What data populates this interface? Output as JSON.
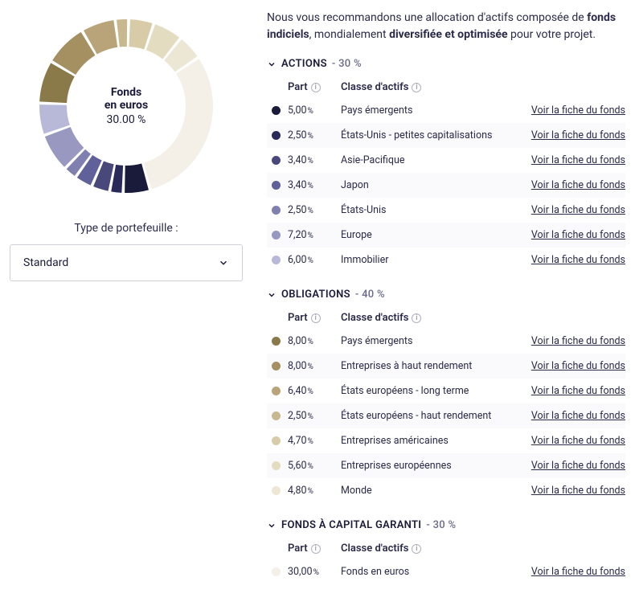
{
  "intro": {
    "p1": "Nous vous recommandons une allocation d'actifs composée de",
    "b1": "fonds indiciels",
    "p2": ", mondialement",
    "b2": "diversifiée et optimisée",
    "p3": "pour votre projet."
  },
  "donut": {
    "center": {
      "line1": "Fonds",
      "line2": "en euros",
      "line3": "30.00 %"
    },
    "type": "donut",
    "colors": {
      "segment_gap_deg": 2,
      "background": "#ffffff"
    },
    "segments": [
      {
        "value": 5.0,
        "color": "#1a1a3a"
      },
      {
        "value": 2.5,
        "color": "#2a2a5a"
      },
      {
        "value": 3.4,
        "color": "#48487a"
      },
      {
        "value": 3.4,
        "color": "#60609a"
      },
      {
        "value": 2.5,
        "color": "#8080b0"
      },
      {
        "value": 7.2,
        "color": "#9898c0"
      },
      {
        "value": 6.0,
        "color": "#b8b8d8"
      },
      {
        "value": 8.0,
        "color": "#8a7a4a"
      },
      {
        "value": 8.0,
        "color": "#a49060"
      },
      {
        "value": 6.4,
        "color": "#b8a478"
      },
      {
        "value": 2.5,
        "color": "#c8b890"
      },
      {
        "value": 4.7,
        "color": "#d8cca8"
      },
      {
        "value": 5.6,
        "color": "#e4dcc0"
      },
      {
        "value": 4.8,
        "color": "#ece6d4"
      },
      {
        "value": 30.0,
        "color": "#f4f0e8"
      }
    ]
  },
  "portfolio_type": {
    "label": "Type de portefeuille :",
    "value": "Standard"
  },
  "table": {
    "header_part": "Part",
    "header_class": "Classe d'actifs",
    "link_label": "Voir la fiche du fonds"
  },
  "sections": [
    {
      "name": "ACTIONS",
      "pct": "30 %",
      "rows": [
        {
          "part": "5,00",
          "class": "Pays émergents",
          "color": "#1a1a3a"
        },
        {
          "part": "2,50",
          "class": "États-Unis - petites capitalisations",
          "color": "#2a2a5a"
        },
        {
          "part": "3,40",
          "class": "Asie-Pacifique",
          "color": "#48487a"
        },
        {
          "part": "3,40",
          "class": "Japon",
          "color": "#60609a"
        },
        {
          "part": "2,50",
          "class": "États-Unis",
          "color": "#8080b0"
        },
        {
          "part": "7,20",
          "class": "Europe",
          "color": "#9898c0"
        },
        {
          "part": "6,00",
          "class": "Immobilier",
          "color": "#b8b8d8"
        }
      ]
    },
    {
      "name": "OBLIGATIONS",
      "pct": "40 %",
      "rows": [
        {
          "part": "8,00",
          "class": "Pays émergents",
          "color": "#8a7a4a"
        },
        {
          "part": "8,00",
          "class": "Entreprises à haut rendement",
          "color": "#a49060"
        },
        {
          "part": "6,40",
          "class": "États européens - long terme",
          "color": "#b8a478"
        },
        {
          "part": "2,50",
          "class": "États européens - haut rendement",
          "color": "#c8b890"
        },
        {
          "part": "4,70",
          "class": "Entreprises américaines",
          "color": "#d8cca8"
        },
        {
          "part": "5,60",
          "class": "Entreprises européennes",
          "color": "#e4dcc0"
        },
        {
          "part": "4,80",
          "class": "Monde",
          "color": "#ece6d4"
        }
      ]
    },
    {
      "name": "FONDS À CAPITAL GARANTI",
      "pct": "30 %",
      "rows": [
        {
          "part": "30,00",
          "class": "Fonds en euros",
          "color": "#f4f0e8"
        }
      ]
    }
  ]
}
